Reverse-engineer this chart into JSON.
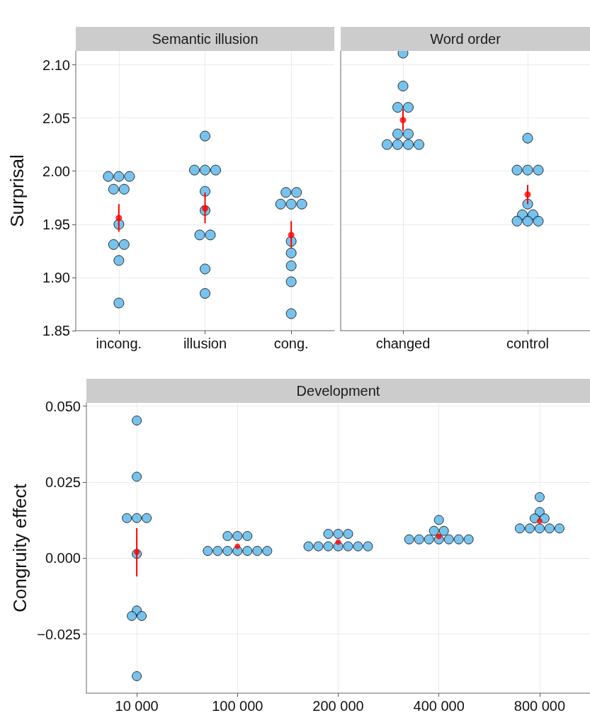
{
  "chart_data": [
    {
      "type": "scatter",
      "title": "Semantic illusion",
      "ylabel": "Surprisal",
      "categories": [
        "incong.",
        "illusion",
        "cong."
      ],
      "ylim": [
        1.85,
        2.113
      ],
      "yticks": [
        {
          "value": 1.85,
          "label": "1.85"
        },
        {
          "value": 1.9,
          "label": "1.90"
        },
        {
          "value": 1.95,
          "label": "1.95"
        },
        {
          "value": 2.0,
          "label": "2.00"
        },
        {
          "value": 2.05,
          "label": "2.05"
        },
        {
          "value": 2.1,
          "label": "2.10"
        }
      ],
      "grid": true,
      "marker": "circle",
      "series": [
        {
          "color": "#56b4e9",
          "x": [
            "incong.",
            "incong.",
            "incong.",
            "incong.",
            "incong.",
            "incong.",
            "incong.",
            "incong.",
            "incong.",
            "incong.",
            "illusion",
            "illusion",
            "illusion",
            "illusion",
            "illusion",
            "illusion",
            "illusion",
            "illusion",
            "illusion",
            "illusion",
            "cong.",
            "cong.",
            "cong.",
            "cong.",
            "cong.",
            "cong.",
            "cong.",
            "cong.",
            "cong.",
            "cong."
          ],
          "values": [
            1.995,
            1.995,
            1.995,
            1.983,
            1.983,
            1.95,
            1.931,
            1.931,
            1.916,
            1.876,
            2.033,
            2.001,
            2.001,
            2.001,
            1.981,
            1.963,
            1.94,
            1.94,
            1.908,
            1.885,
            1.98,
            1.98,
            1.969,
            1.969,
            1.969,
            1.934,
            1.923,
            1.911,
            1.896,
            1.866
          ]
        },
        {
          "color": "#ff0000",
          "x": [
            "incong.",
            "illusion",
            "cong."
          ],
          "values": [
            1.956,
            1.965,
            1.94
          ],
          "errors": [
            [
              1.943,
              1.969
            ],
            [
              1.951,
              1.98
            ],
            [
              1.928,
              1.953
            ]
          ]
        }
      ]
    },
    {
      "type": "scatter",
      "title": "Word order",
      "categories": [
        "changed",
        "control"
      ],
      "ylim": [
        1.85,
        2.113
      ],
      "yticks": [
        {
          "value": 1.85,
          "label": null
        },
        {
          "value": 1.9,
          "label": null
        },
        {
          "value": 1.95,
          "label": null
        },
        {
          "value": 2.0,
          "label": null
        },
        {
          "value": 2.05,
          "label": null
        },
        {
          "value": 2.1,
          "label": null
        }
      ],
      "tick_labels": "x",
      "grid": true,
      "marker": "circle",
      "series": [
        {
          "color": "#56b4e9",
          "x": [
            "changed",
            "changed",
            "changed",
            "changed",
            "changed",
            "changed",
            "changed",
            "changed",
            "changed",
            "changed",
            "control",
            "control",
            "control",
            "control",
            "control",
            "control",
            "control",
            "control",
            "control",
            "control"
          ],
          "values": [
            2.111,
            2.08,
            2.06,
            2.06,
            2.035,
            2.035,
            2.025,
            2.025,
            2.025,
            2.025,
            2.031,
            2.001,
            2.001,
            2.001,
            1.969,
            1.959,
            1.959,
            1.953,
            1.953,
            1.953
          ]
        },
        {
          "color": "#ff0000",
          "x": [
            "changed",
            "control"
          ],
          "values": [
            2.048,
            1.978
          ],
          "errors": [
            [
              2.038,
              2.058
            ],
            [
              1.969,
              1.987
            ]
          ]
        }
      ]
    },
    {
      "type": "scatter",
      "title": "Development",
      "ylabel": "Congruity effect",
      "categories": [
        "10 000",
        "100 000",
        "200 000",
        "400 000",
        "800 000"
      ],
      "ylim": [
        -0.0444,
        0.0511
      ],
      "yticks": [
        {
          "value": -0.025,
          "label": "−0.025"
        },
        {
          "value": 0,
          "label": "0.000"
        },
        {
          "value": 0.025,
          "label": "0.025"
        },
        {
          "value": 0.05,
          "label": "0.050"
        }
      ],
      "grid": true,
      "marker": "circle",
      "series": [
        {
          "color": "#56b4e9",
          "x": [
            "10 000",
            "10 000",
            "10 000",
            "10 000",
            "10 000",
            "10 000",
            "10 000",
            "10 000",
            "10 000",
            "10 000",
            "100 000",
            "100 000",
            "100 000",
            "100 000",
            "100 000",
            "100 000",
            "100 000",
            "100 000",
            "100 000",
            "100 000",
            "200 000",
            "200 000",
            "200 000",
            "200 000",
            "200 000",
            "200 000",
            "200 000",
            "200 000",
            "200 000",
            "200 000",
            "400 000",
            "400 000",
            "400 000",
            "400 000",
            "400 000",
            "400 000",
            "400 000",
            "400 000",
            "400 000",
            "400 000",
            "800 000",
            "800 000",
            "800 000",
            "800 000",
            "800 000",
            "800 000",
            "800 000",
            "800 000",
            "800 000"
          ],
          "values": [
            0.0453,
            0.0268,
            0.0132,
            0.0132,
            0.0132,
            0.0014,
            -0.0172,
            -0.019,
            -0.019,
            -0.0388,
            0.0073,
            0.0073,
            0.0073,
            0.0024,
            0.0024,
            0.0024,
            0.0024,
            0.0024,
            0.0024,
            0.0024,
            0.008,
            0.008,
            0.008,
            0.0039,
            0.0039,
            0.0039,
            0.0039,
            0.0039,
            0.0039,
            0.0039,
            0.0126,
            0.009,
            0.009,
            0.0062,
            0.0062,
            0.0062,
            0.0062,
            0.0062,
            0.0062,
            0.0062,
            0.0201,
            0.0152,
            0.0131,
            0.0131,
            0.0098,
            0.0098,
            0.0098,
            0.0098,
            0.0098
          ]
        },
        {
          "color": "#ff0000",
          "x": [
            "10 000",
            "100 000",
            "200 000",
            "400 000",
            "800 000"
          ],
          "values": [
            0.002,
            0.0039,
            0.0053,
            0.0072,
            0.0122
          ],
          "errors": [
            [
              -0.006,
              0.0099
            ],
            null,
            null,
            null,
            null
          ]
        }
      ]
    }
  ]
}
